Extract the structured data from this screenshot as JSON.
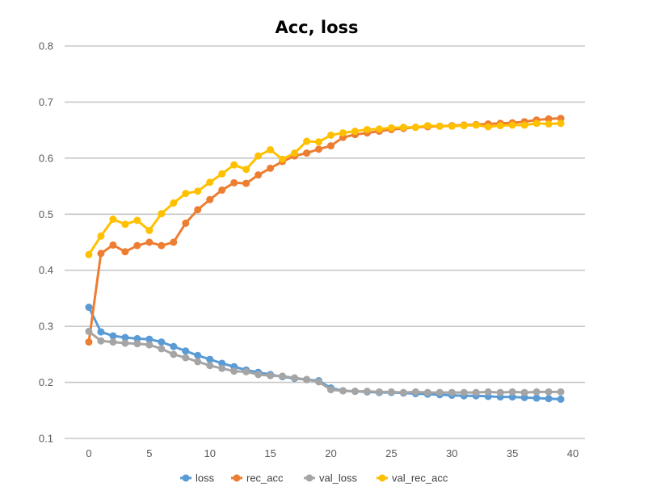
{
  "chart_data": {
    "type": "line",
    "title": "Acc, loss",
    "xlabel": "",
    "ylabel": "",
    "xlim": [
      -2,
      41
    ],
    "ylim": [
      0.1,
      0.8
    ],
    "x_ticks": [
      0,
      5,
      10,
      15,
      20,
      25,
      30,
      35,
      40
    ],
    "y_ticks": [
      0.1,
      0.2,
      0.3,
      0.4,
      0.5,
      0.6,
      0.7,
      0.8
    ],
    "x_tick_labels": [
      "0",
      "5",
      "10",
      "15",
      "20",
      "25",
      "30",
      "35",
      "40"
    ],
    "y_tick_labels": [
      "0.1",
      "0.2",
      "0.3",
      "0.4",
      "0.5",
      "0.6",
      "0.7",
      "0.8"
    ],
    "grid": "horizontal",
    "legend_position": "bottom",
    "x": [
      0,
      1,
      2,
      3,
      4,
      5,
      6,
      7,
      8,
      9,
      10,
      11,
      12,
      13,
      14,
      15,
      16,
      17,
      18,
      19,
      20,
      21,
      22,
      23,
      24,
      25,
      26,
      27,
      28,
      29,
      30,
      31,
      32,
      33,
      34,
      35,
      36,
      37,
      38,
      39
    ],
    "series": [
      {
        "name": "loss",
        "color": "#5b9bd5",
        "values": [
          0.334,
          0.29,
          0.283,
          0.28,
          0.278,
          0.277,
          0.272,
          0.264,
          0.256,
          0.248,
          0.241,
          0.234,
          0.228,
          0.222,
          0.218,
          0.214,
          0.21,
          0.207,
          0.205,
          0.203,
          0.19,
          0.185,
          0.184,
          0.183,
          0.182,
          0.182,
          0.181,
          0.18,
          0.179,
          0.178,
          0.177,
          0.176,
          0.176,
          0.175,
          0.174,
          0.174,
          0.173,
          0.172,
          0.171,
          0.17
        ]
      },
      {
        "name": "rec_acc",
        "color": "#ed7d31",
        "values": [
          0.272,
          0.43,
          0.445,
          0.433,
          0.444,
          0.45,
          0.444,
          0.45,
          0.484,
          0.508,
          0.526,
          0.543,
          0.556,
          0.555,
          0.57,
          0.582,
          0.594,
          0.604,
          0.609,
          0.616,
          0.622,
          0.637,
          0.642,
          0.645,
          0.648,
          0.651,
          0.653,
          0.655,
          0.656,
          0.657,
          0.658,
          0.659,
          0.66,
          0.661,
          0.662,
          0.663,
          0.665,
          0.668,
          0.67,
          0.671
        ]
      },
      {
        "name": "val_loss",
        "color": "#a5a5a5",
        "values": [
          0.291,
          0.274,
          0.272,
          0.27,
          0.269,
          0.267,
          0.26,
          0.25,
          0.244,
          0.237,
          0.23,
          0.225,
          0.22,
          0.219,
          0.214,
          0.212,
          0.211,
          0.208,
          0.205,
          0.201,
          0.187,
          0.185,
          0.184,
          0.184,
          0.183,
          0.183,
          0.182,
          0.183,
          0.182,
          0.182,
          0.182,
          0.182,
          0.182,
          0.183,
          0.182,
          0.183,
          0.182,
          0.183,
          0.183,
          0.183
        ]
      },
      {
        "name": "val_rec_acc",
        "color": "#ffc000",
        "values": [
          0.428,
          0.461,
          0.491,
          0.482,
          0.489,
          0.471,
          0.501,
          0.52,
          0.537,
          0.541,
          0.557,
          0.572,
          0.588,
          0.58,
          0.604,
          0.615,
          0.598,
          0.609,
          0.63,
          0.629,
          0.641,
          0.645,
          0.648,
          0.651,
          0.652,
          0.654,
          0.655,
          0.655,
          0.658,
          0.657,
          0.657,
          0.658,
          0.659,
          0.656,
          0.658,
          0.659,
          0.659,
          0.662,
          0.661,
          0.662
        ]
      }
    ]
  }
}
